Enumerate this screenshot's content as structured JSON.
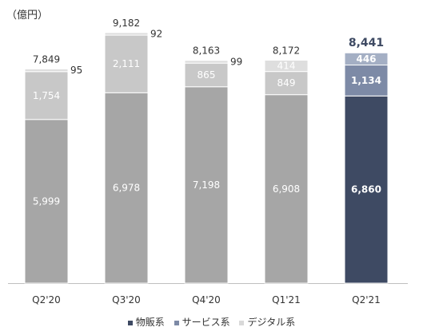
{
  "chart_data": {
    "type": "bar",
    "stacked": true,
    "unit_label": "（億円）",
    "categories": [
      "Q2'20",
      "Q3'20",
      "Q4'20",
      "Q1'21",
      "Q2'21"
    ],
    "series": [
      {
        "name": "物販系",
        "values": [
          5999,
          6978,
          7198,
          6908,
          6860
        ],
        "color": "#a6a6a6",
        "highlight_color": "#3e4a63"
      },
      {
        "name": "サービス系",
        "values": [
          1754,
          2111,
          865,
          849,
          1134
        ],
        "color": "#c8c8c8",
        "highlight_color": "#7d8aa6"
      },
      {
        "name": "デジタル系",
        "values": [
          95,
          92,
          99,
          414,
          446
        ],
        "color": "#dedede",
        "highlight_color": "#a4afc4"
      }
    ],
    "value_labels": [
      [
        "5,999",
        "6,978",
        "7,198",
        "6,908",
        "6,860"
      ],
      [
        "1,754",
        "2,111",
        "865",
        "849",
        "1,134"
      ],
      [
        "95",
        "92",
        "99",
        "414",
        "446"
      ]
    ],
    "totals": [
      7849,
      9182,
      8163,
      8172,
      8441
    ],
    "total_labels": [
      "7,849",
      "9,182",
      "8,163",
      "8,172",
      "8,441"
    ],
    "highlight_index": 4,
    "ylim": [
      0,
      9500
    ],
    "grid": false,
    "legend_position": "bottom"
  }
}
